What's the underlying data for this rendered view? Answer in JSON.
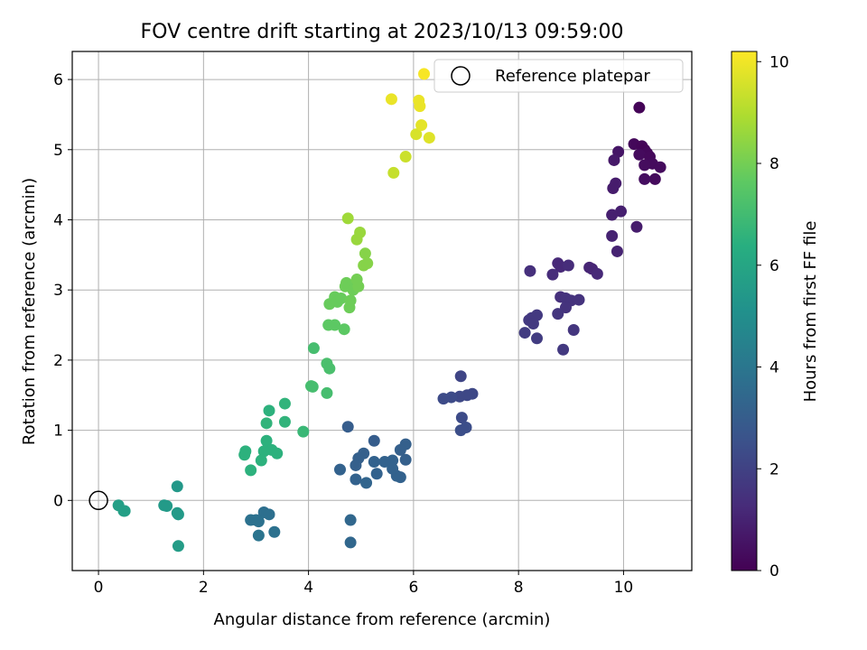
{
  "chart_data": {
    "type": "scatter",
    "title": "FOV centre drift starting at 2023/10/13 09:59:00",
    "xlabel": "Angular distance from reference (arcmin)",
    "ylabel": "Rotation from reference (arcmin)",
    "xlim": [
      -0.5,
      11.3
    ],
    "ylim": [
      -1.0,
      6.4
    ],
    "xticks": [
      0,
      2,
      4,
      6,
      8,
      10
    ],
    "yticks": [
      0,
      1,
      2,
      3,
      4,
      5,
      6
    ],
    "grid": true,
    "legend": {
      "placement": "top-right",
      "entries": [
        "Reference platepar"
      ]
    },
    "reference_point": {
      "x": 0,
      "y": 0
    },
    "colorbar": {
      "label": "Hours from first FF file",
      "colormap": "viridis",
      "range": [
        0,
        10.2
      ],
      "ticks": [
        0,
        2,
        4,
        6,
        8,
        10
      ]
    },
    "points": [
      {
        "x": 10.3,
        "y": 5.6,
        "c": 0.1
      },
      {
        "x": 10.2,
        "y": 5.08,
        "c": 0.2
      },
      {
        "x": 10.35,
        "y": 5.05,
        "c": 0.15
      },
      {
        "x": 10.4,
        "y": 5.0,
        "c": 0.1
      },
      {
        "x": 10.45,
        "y": 4.95,
        "c": 0.2
      },
      {
        "x": 10.3,
        "y": 4.93,
        "c": 0.3
      },
      {
        "x": 10.5,
        "y": 4.9,
        "c": 0.25
      },
      {
        "x": 10.55,
        "y": 4.8,
        "c": 0.3
      },
      {
        "x": 10.4,
        "y": 4.78,
        "c": 0.35
      },
      {
        "x": 10.7,
        "y": 4.75,
        "c": 0.3
      },
      {
        "x": 10.6,
        "y": 4.58,
        "c": 0.3
      },
      {
        "x": 10.4,
        "y": 4.58,
        "c": 0.4
      },
      {
        "x": 9.9,
        "y": 4.97,
        "c": 0.6
      },
      {
        "x": 9.82,
        "y": 4.85,
        "c": 0.7
      },
      {
        "x": 9.85,
        "y": 4.52,
        "c": 0.8
      },
      {
        "x": 9.8,
        "y": 4.45,
        "c": 0.8
      },
      {
        "x": 9.95,
        "y": 4.12,
        "c": 0.9
      },
      {
        "x": 9.78,
        "y": 4.07,
        "c": 0.9
      },
      {
        "x": 10.25,
        "y": 3.9,
        "c": 0.8
      },
      {
        "x": 9.78,
        "y": 3.77,
        "c": 1.0
      },
      {
        "x": 9.88,
        "y": 3.55,
        "c": 1.0
      },
      {
        "x": 9.35,
        "y": 3.32,
        "c": 1.1
      },
      {
        "x": 9.4,
        "y": 3.3,
        "c": 1.1
      },
      {
        "x": 9.5,
        "y": 3.23,
        "c": 1.2
      },
      {
        "x": 8.75,
        "y": 3.38,
        "c": 1.2
      },
      {
        "x": 8.8,
        "y": 3.33,
        "c": 1.2
      },
      {
        "x": 8.95,
        "y": 3.35,
        "c": 1.3
      },
      {
        "x": 8.65,
        "y": 3.22,
        "c": 1.3
      },
      {
        "x": 8.22,
        "y": 3.27,
        "c": 1.4
      },
      {
        "x": 8.8,
        "y": 2.9,
        "c": 1.4
      },
      {
        "x": 8.9,
        "y": 2.88,
        "c": 1.5
      },
      {
        "x": 9.0,
        "y": 2.85,
        "c": 1.5
      },
      {
        "x": 9.15,
        "y": 2.86,
        "c": 1.5
      },
      {
        "x": 8.9,
        "y": 2.75,
        "c": 1.5
      },
      {
        "x": 8.75,
        "y": 2.66,
        "c": 1.6
      },
      {
        "x": 8.35,
        "y": 2.64,
        "c": 1.7
      },
      {
        "x": 8.25,
        "y": 2.6,
        "c": 1.7
      },
      {
        "x": 8.2,
        "y": 2.57,
        "c": 1.7
      },
      {
        "x": 8.28,
        "y": 2.52,
        "c": 1.7
      },
      {
        "x": 9.05,
        "y": 2.43,
        "c": 1.6
      },
      {
        "x": 8.12,
        "y": 2.39,
        "c": 1.8
      },
      {
        "x": 8.35,
        "y": 2.31,
        "c": 1.8
      },
      {
        "x": 8.85,
        "y": 2.15,
        "c": 1.7
      },
      {
        "x": 6.9,
        "y": 1.77,
        "c": 2.1
      },
      {
        "x": 7.12,
        "y": 1.52,
        "c": 2.2
      },
      {
        "x": 7.02,
        "y": 1.5,
        "c": 2.2
      },
      {
        "x": 6.88,
        "y": 1.48,
        "c": 2.2
      },
      {
        "x": 6.72,
        "y": 1.47,
        "c": 2.3
      },
      {
        "x": 6.57,
        "y": 1.45,
        "c": 2.3
      },
      {
        "x": 6.92,
        "y": 1.18,
        "c": 2.3
      },
      {
        "x": 7.0,
        "y": 1.04,
        "c": 2.4
      },
      {
        "x": 6.9,
        "y": 1.0,
        "c": 2.4
      },
      {
        "x": 4.75,
        "y": 1.05,
        "c": 3.0
      },
      {
        "x": 5.25,
        "y": 0.85,
        "c": 3.0
      },
      {
        "x": 5.85,
        "y": 0.8,
        "c": 3.1
      },
      {
        "x": 5.75,
        "y": 0.72,
        "c": 3.1
      },
      {
        "x": 5.05,
        "y": 0.67,
        "c": 3.1
      },
      {
        "x": 4.95,
        "y": 0.6,
        "c": 3.1
      },
      {
        "x": 4.9,
        "y": 0.5,
        "c": 3.1
      },
      {
        "x": 5.85,
        "y": 0.58,
        "c": 3.1
      },
      {
        "x": 5.6,
        "y": 0.57,
        "c": 3.2
      },
      {
        "x": 5.25,
        "y": 0.55,
        "c": 3.2
      },
      {
        "x": 5.45,
        "y": 0.55,
        "c": 3.2
      },
      {
        "x": 4.6,
        "y": 0.44,
        "c": 3.2
      },
      {
        "x": 5.6,
        "y": 0.45,
        "c": 3.2
      },
      {
        "x": 5.3,
        "y": 0.38,
        "c": 3.2
      },
      {
        "x": 5.68,
        "y": 0.35,
        "c": 3.2
      },
      {
        "x": 5.75,
        "y": 0.33,
        "c": 3.2
      },
      {
        "x": 4.9,
        "y": 0.3,
        "c": 3.2
      },
      {
        "x": 5.1,
        "y": 0.25,
        "c": 3.3
      },
      {
        "x": 4.8,
        "y": -0.28,
        "c": 3.4
      },
      {
        "x": 4.8,
        "y": -0.6,
        "c": 3.4
      },
      {
        "x": 3.15,
        "y": -0.17,
        "c": 3.7
      },
      {
        "x": 3.25,
        "y": -0.2,
        "c": 3.7
      },
      {
        "x": 2.9,
        "y": -0.28,
        "c": 3.8
      },
      {
        "x": 3.0,
        "y": -0.28,
        "c": 3.8
      },
      {
        "x": 3.05,
        "y": -0.3,
        "c": 3.8
      },
      {
        "x": 3.35,
        "y": -0.45,
        "c": 3.8
      },
      {
        "x": 3.05,
        "y": -0.5,
        "c": 3.9
      },
      {
        "x": 1.5,
        "y": 0.2,
        "c": 5.4
      },
      {
        "x": 1.25,
        "y": -0.07,
        "c": 5.5
      },
      {
        "x": 1.3,
        "y": -0.08,
        "c": 5.5
      },
      {
        "x": 1.5,
        "y": -0.18,
        "c": 5.5
      },
      {
        "x": 1.52,
        "y": -0.2,
        "c": 5.5
      },
      {
        "x": 1.52,
        "y": -0.65,
        "c": 5.6
      },
      {
        "x": 0.38,
        "y": -0.07,
        "c": 5.7
      },
      {
        "x": 0.48,
        "y": -0.15,
        "c": 5.7
      },
      {
        "x": 0.5,
        "y": -0.15,
        "c": 5.7
      },
      {
        "x": 3.25,
        "y": 1.28,
        "c": 6.5
      },
      {
        "x": 3.55,
        "y": 1.38,
        "c": 6.6
      },
      {
        "x": 3.55,
        "y": 1.12,
        "c": 6.6
      },
      {
        "x": 3.2,
        "y": 1.1,
        "c": 6.6
      },
      {
        "x": 3.2,
        "y": 0.85,
        "c": 6.5
      },
      {
        "x": 3.3,
        "y": 0.72,
        "c": 6.5
      },
      {
        "x": 3.15,
        "y": 0.7,
        "c": 6.5
      },
      {
        "x": 3.4,
        "y": 0.67,
        "c": 6.5
      },
      {
        "x": 2.8,
        "y": 0.7,
        "c": 6.5
      },
      {
        "x": 2.78,
        "y": 0.65,
        "c": 6.5
      },
      {
        "x": 3.1,
        "y": 0.57,
        "c": 6.5
      },
      {
        "x": 2.9,
        "y": 0.43,
        "c": 6.5
      },
      {
        "x": 3.9,
        "y": 0.98,
        "c": 6.8
      },
      {
        "x": 4.1,
        "y": 2.17,
        "c": 7.1
      },
      {
        "x": 4.35,
        "y": 1.95,
        "c": 7.2
      },
      {
        "x": 4.4,
        "y": 1.88,
        "c": 7.2
      },
      {
        "x": 4.05,
        "y": 1.63,
        "c": 7.1
      },
      {
        "x": 4.08,
        "y": 1.62,
        "c": 7.1
      },
      {
        "x": 4.35,
        "y": 1.53,
        "c": 7.1
      },
      {
        "x": 4.38,
        "y": 2.5,
        "c": 7.6
      },
      {
        "x": 4.5,
        "y": 2.5,
        "c": 7.6
      },
      {
        "x": 4.68,
        "y": 2.44,
        "c": 7.6
      },
      {
        "x": 4.4,
        "y": 2.8,
        "c": 7.8
      },
      {
        "x": 4.5,
        "y": 2.9,
        "c": 7.8
      },
      {
        "x": 4.55,
        "y": 2.83,
        "c": 7.8
      },
      {
        "x": 4.62,
        "y": 2.88,
        "c": 7.8
      },
      {
        "x": 4.7,
        "y": 3.05,
        "c": 7.9
      },
      {
        "x": 4.72,
        "y": 3.1,
        "c": 7.9
      },
      {
        "x": 4.82,
        "y": 3.05,
        "c": 7.9
      },
      {
        "x": 4.85,
        "y": 3.0,
        "c": 7.9
      },
      {
        "x": 4.78,
        "y": 2.75,
        "c": 7.9
      },
      {
        "x": 4.8,
        "y": 2.85,
        "c": 7.9
      },
      {
        "x": 4.92,
        "y": 3.15,
        "c": 8.0
      },
      {
        "x": 4.95,
        "y": 3.05,
        "c": 8.0
      },
      {
        "x": 5.05,
        "y": 3.35,
        "c": 8.3
      },
      {
        "x": 5.08,
        "y": 3.52,
        "c": 8.3
      },
      {
        "x": 5.12,
        "y": 3.38,
        "c": 8.3
      },
      {
        "x": 4.92,
        "y": 3.72,
        "c": 8.6
      },
      {
        "x": 4.98,
        "y": 3.82,
        "c": 8.6
      },
      {
        "x": 4.75,
        "y": 4.02,
        "c": 8.7
      },
      {
        "x": 5.62,
        "y": 4.67,
        "c": 9.3
      },
      {
        "x": 5.85,
        "y": 4.9,
        "c": 9.4
      },
      {
        "x": 6.05,
        "y": 5.22,
        "c": 9.6
      },
      {
        "x": 6.3,
        "y": 5.17,
        "c": 9.7
      },
      {
        "x": 6.15,
        "y": 5.35,
        "c": 9.8
      },
      {
        "x": 6.12,
        "y": 5.62,
        "c": 9.9
      },
      {
        "x": 6.1,
        "y": 5.7,
        "c": 9.9
      },
      {
        "x": 5.58,
        "y": 5.72,
        "c": 9.9
      },
      {
        "x": 6.2,
        "y": 6.08,
        "c": 10.1
      }
    ]
  }
}
